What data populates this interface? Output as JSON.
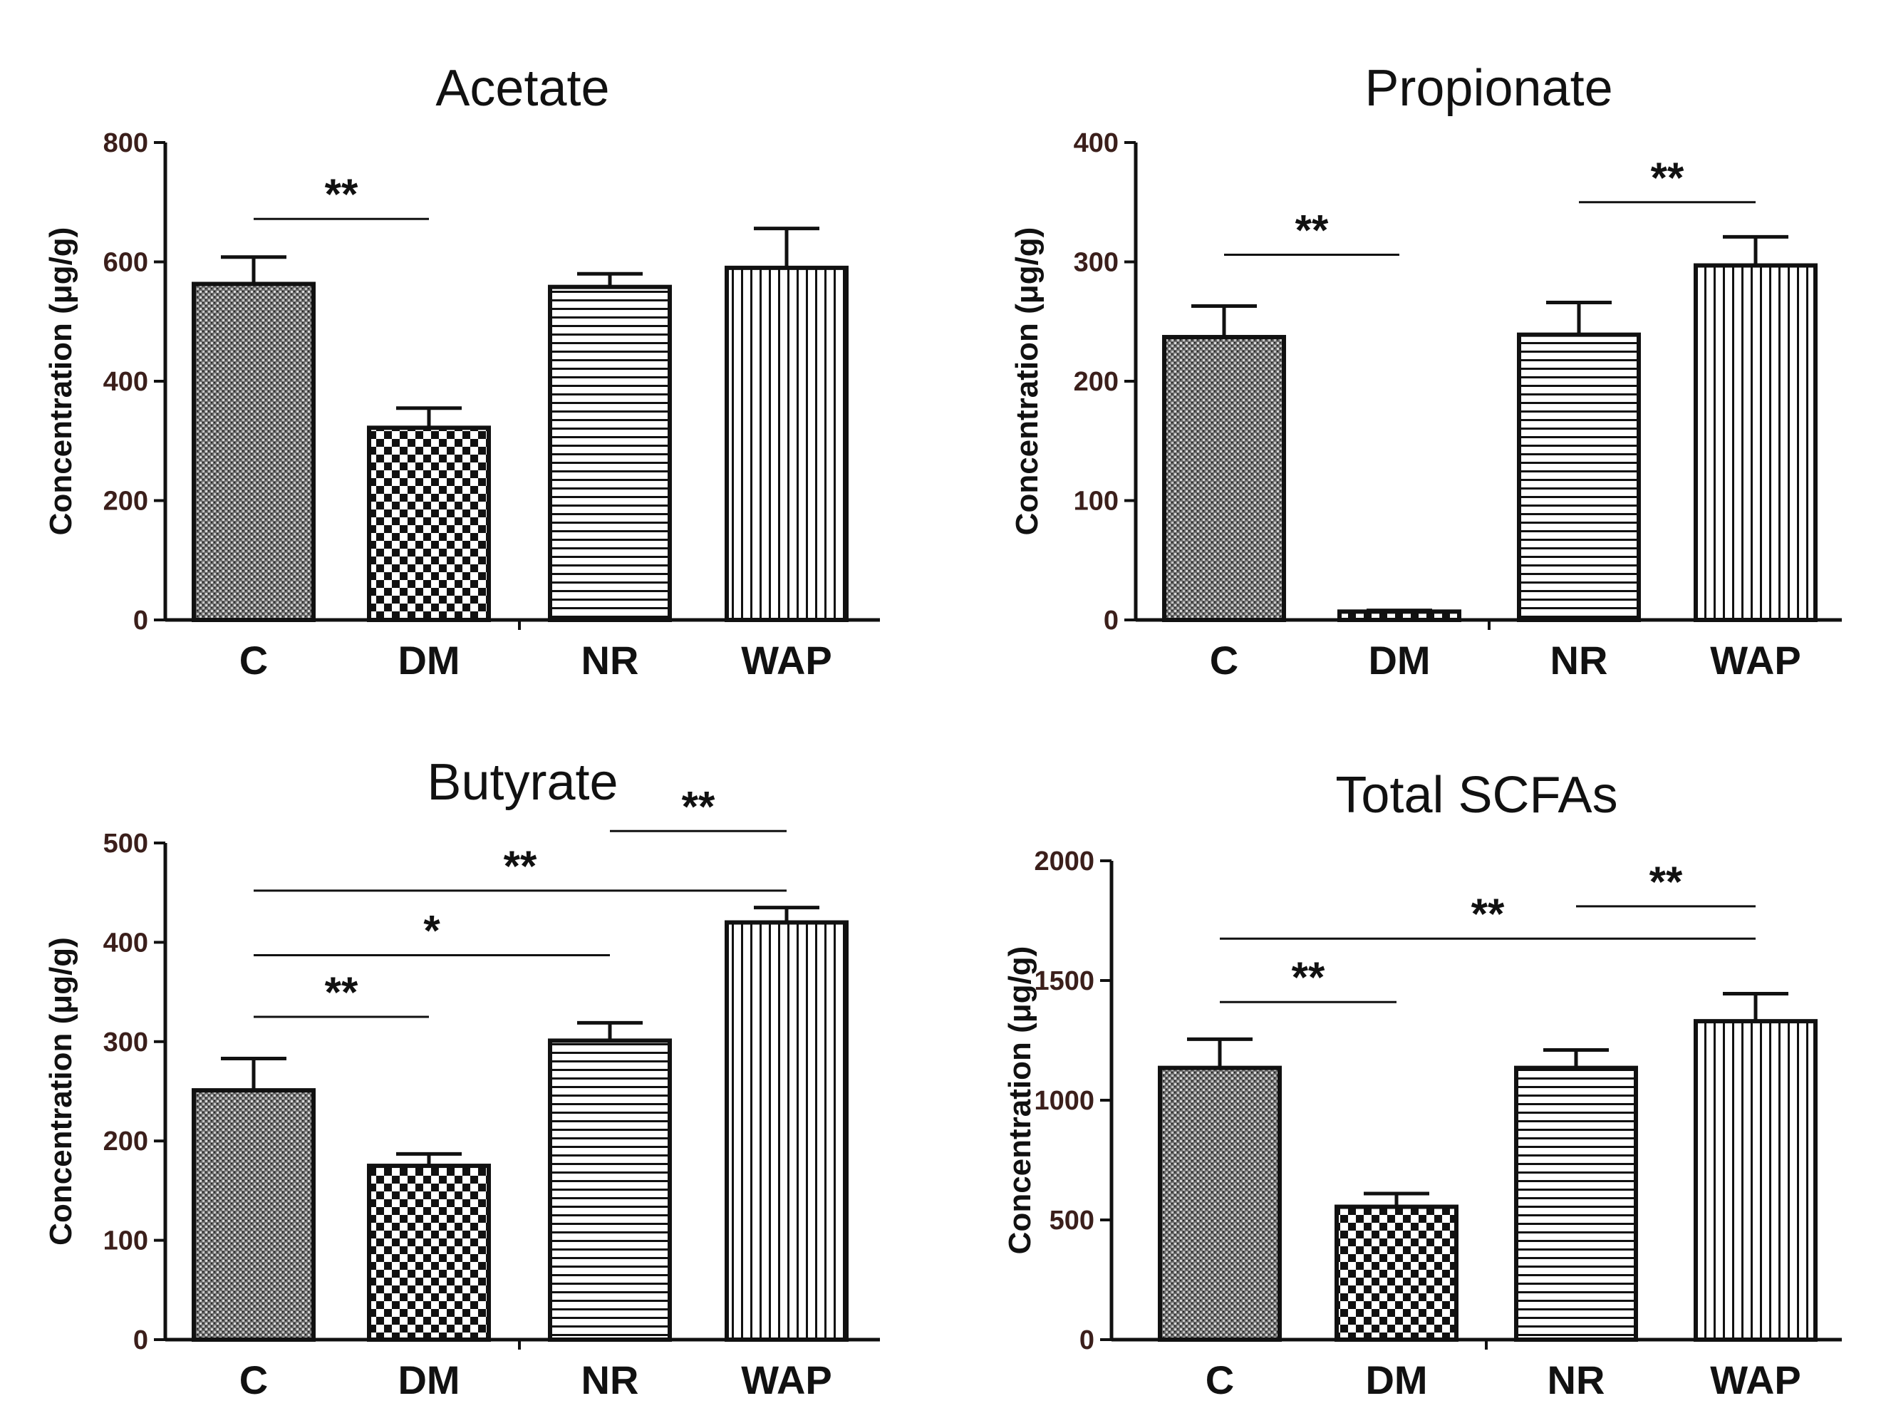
{
  "chart_data": [
    {
      "type": "bar",
      "title": "Acetate",
      "ylabel": "Concentration (μg/g)",
      "xlabel": "",
      "categories": [
        "C",
        "DM",
        "NR",
        "WAP"
      ],
      "values": [
        563,
        322,
        558,
        590
      ],
      "errors": [
        45,
        33,
        22,
        66
      ],
      "ylim": [
        0,
        800
      ],
      "yticks": [
        0,
        200,
        400,
        600,
        800
      ],
      "significance": [
        {
          "from": 0,
          "to": 1,
          "label": "**",
          "y": 672
        }
      ]
    },
    {
      "type": "bar",
      "title": "Propionate",
      "ylabel": "Concentration (μg/g)",
      "xlabel": "",
      "categories": [
        "C",
        "DM",
        "NR",
        "WAP"
      ],
      "values": [
        237,
        7,
        239,
        297
      ],
      "errors": [
        26,
        1,
        27,
        24
      ],
      "ylim": [
        0,
        400
      ],
      "yticks": [
        0,
        100,
        200,
        300,
        400
      ],
      "significance": [
        {
          "from": 0,
          "to": 1,
          "label": "**",
          "y": 306
        },
        {
          "from": 2,
          "to": 3,
          "label": "**",
          "y": 350
        }
      ]
    },
    {
      "type": "bar",
      "title": "Butyrate",
      "ylabel": "Concentration (μg/g)",
      "xlabel": "",
      "categories": [
        "C",
        "DM",
        "NR",
        "WAP"
      ],
      "values": [
        251,
        175,
        301,
        420
      ],
      "errors": [
        32,
        12,
        18,
        15
      ],
      "ylim": [
        0,
        500
      ],
      "yticks": [
        0,
        100,
        200,
        300,
        400,
        500
      ],
      "significance": [
        {
          "from": 0,
          "to": 1,
          "label": "**",
          "y": 325
        },
        {
          "from": 0,
          "to": 2,
          "label": "*",
          "y": 387
        },
        {
          "from": 0,
          "to": 3,
          "label": "**",
          "y": 452
        },
        {
          "from": 2,
          "to": 3,
          "label": "**",
          "y": 512
        }
      ]
    },
    {
      "type": "bar",
      "title": "Total SCFAs",
      "ylabel": "Concentration (μg/g)",
      "xlabel": "",
      "categories": [
        "C",
        "DM",
        "NR",
        "WAP"
      ],
      "values": [
        1135,
        555,
        1135,
        1330
      ],
      "errors": [
        120,
        55,
        75,
        115
      ],
      "ylim": [
        0,
        2000
      ],
      "yticks": [
        0,
        500,
        1000,
        1500,
        2000
      ],
      "significance": [
        {
          "from": 0,
          "to": 1,
          "label": "**",
          "y": 1410
        },
        {
          "from": 0,
          "to": 3,
          "label": "**",
          "y": 1675
        },
        {
          "from": 2,
          "to": 3,
          "label": "**",
          "y": 1810
        }
      ]
    }
  ],
  "colors": {
    "axis": "#111111",
    "tick_label": "#3b1f1b",
    "bar_stroke": "#111111"
  }
}
